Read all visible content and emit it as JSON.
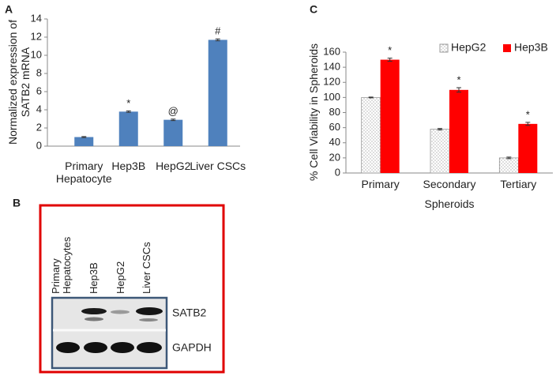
{
  "panel_labels": [
    "A",
    "B",
    "C"
  ],
  "chart_data": [
    {
      "type": "bar",
      "ylabel": "Normalized expression of SATB2 mRNA",
      "categories": [
        "Primary Hepatocyte",
        "Hep3B",
        "HepG2",
        "Liver CSCs"
      ],
      "values": [
        1.0,
        3.8,
        2.9,
        11.7
      ],
      "errors": [
        0.05,
        0.08,
        0.08,
        0.1
      ],
      "markers": [
        null,
        "*",
        "@",
        "#"
      ],
      "color": "#4f81bd",
      "ylim": [
        0,
        14
      ],
      "yticks": [
        0,
        2,
        4,
        6,
        8,
        10,
        12,
        14
      ],
      "grid": false
    },
    {
      "type": "bar",
      "ylabel": "% Cell Viability in Spheroids",
      "xlabel": "Spheroids",
      "categories": [
        "Primary",
        "Secondary",
        "Tertiary"
      ],
      "series": [
        {
          "name": "HepG2",
          "color": "#ffffff",
          "pattern": "dots",
          "values": [
            100,
            58,
            20
          ],
          "errors": [
            0.5,
            1,
            1
          ]
        },
        {
          "name": "Hep3B",
          "color": "#ff0000",
          "values": [
            150,
            110,
            65
          ],
          "errors": [
            2,
            3,
            2
          ],
          "markers": [
            "*",
            "*",
            "*"
          ]
        }
      ],
      "ylim": [
        0,
        160
      ],
      "yticks": [
        0,
        20,
        40,
        60,
        80,
        100,
        120,
        140,
        160
      ],
      "grid": false,
      "legend": "top"
    }
  ],
  "blot": {
    "lanes": [
      "Primary Hepatocytes",
      "Hep3B",
      "HepG2",
      "Liver CSCs"
    ],
    "bands": [
      "SATB2",
      "GAPDH"
    ]
  }
}
